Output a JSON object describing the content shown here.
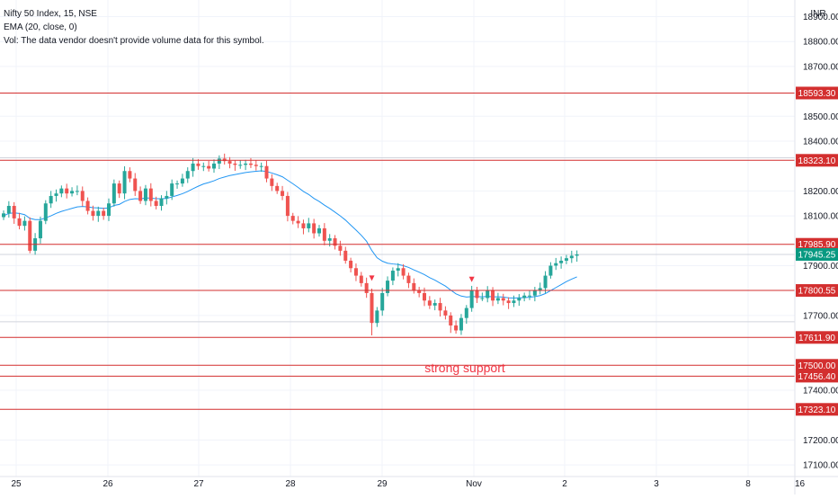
{
  "legend": {
    "symbol": "Nifty 50 Index, 15, NSE",
    "ema": "EMA (20, close, 0)",
    "vol": "Vol: The data vendor doesn't provide volume data for this symbol."
  },
  "currency_label": "INR",
  "chart_data": {
    "type": "candlestick",
    "title": "Nifty 50 Index, 15, NSE",
    "x_tick_labels": [
      "25",
      "26",
      "27",
      "28",
      "29",
      "Nov",
      "2",
      "3",
      "8",
      "16"
    ],
    "y_tick_values": [
      18900,
      18800,
      18700,
      18500,
      18400,
      18200,
      18100,
      17900,
      17700,
      17400,
      17200,
      17100
    ],
    "ylim": [
      17050,
      18950
    ],
    "grid": true,
    "level_lines": [
      18593.3,
      18323.1,
      17985.9,
      17800.55,
      17611.9,
      17500.0,
      17456.4,
      17323.1
    ],
    "level_labels": [
      "18593.30",
      "18323.10",
      "17985.90",
      "17800.55",
      "17611.90",
      "17500.00",
      "17456.40",
      "17323.10"
    ],
    "reference_lines": [
      18333,
      17945.25,
      17675
    ],
    "last_price": 17945.25,
    "last_price_label": "17945.25",
    "annotation": "strong support",
    "closes": [
      18110,
      18140,
      18090,
      18060,
      18080,
      17960,
      18010,
      18080,
      18150,
      18180,
      18190,
      18210,
      18190,
      18200,
      18200,
      18160,
      18120,
      18100,
      18120,
      18100,
      18150,
      18230,
      18190,
      18280,
      18250,
      18200,
      18160,
      18210,
      18160,
      18140,
      18170,
      18180,
      18230,
      18230,
      18250,
      18280,
      18310,
      18300,
      18300,
      18290,
      18310,
      18330,
      18320,
      18310,
      18305,
      18305,
      18310,
      18305,
      18300,
      18300,
      18250,
      18220,
      18200,
      18180,
      18100,
      18080,
      18070,
      18050,
      18070,
      18030,
      18050,
      18000,
      18010,
      17980,
      17960,
      17920,
      17890,
      17860,
      17830,
      17790,
      17670,
      17720,
      17790,
      17840,
      17880,
      17890,
      17860,
      17830,
      17800,
      17790,
      17760,
      17740,
      17750,
      17720,
      17700,
      17660,
      17640,
      17690,
      17730,
      17800,
      17770,
      17770,
      17800,
      17760,
      17770,
      17760,
      17750,
      17760,
      17770,
      17780,
      17780,
      17800,
      17810,
      17860,
      17900,
      17910,
      17920,
      17930,
      17940,
      17945.25
    ],
    "ema": [
      18100,
      18110,
      18112,
      18110,
      18105,
      18090,
      18085,
      18085,
      18092,
      18100,
      18110,
      18118,
      18124,
      18130,
      18136,
      18138,
      18136,
      18133,
      18132,
      18130,
      18132,
      18142,
      18146,
      18158,
      18166,
      18169,
      18168,
      18172,
      18171,
      18169,
      18169,
      18170,
      18176,
      18182,
      18189,
      18198,
      18209,
      18219,
      18228,
      18234,
      18241,
      18250,
      18256,
      18262,
      18266,
      18270,
      18274,
      18277,
      18279,
      18281,
      18278,
      18272,
      18265,
      18257,
      18243,
      18229,
      18214,
      18198,
      18186,
      18170,
      18158,
      18143,
      18130,
      18115,
      18100,
      18083,
      18063,
      18043,
      18022,
      17998,
      17961,
      17932,
      17918,
      17910,
      17907,
      17905,
      17900,
      17893,
      17883,
      17874,
      17864,
      17852,
      17842,
      17830,
      17818,
      17802,
      17787,
      17778,
      17774,
      17776,
      17776,
      17775,
      17777,
      17775,
      17775,
      17774,
      17771,
      17770,
      17771,
      17772,
      17773,
      17776,
      17780,
      17788,
      17800,
      17812,
      17824,
      17836,
      17846,
      17855
    ]
  }
}
